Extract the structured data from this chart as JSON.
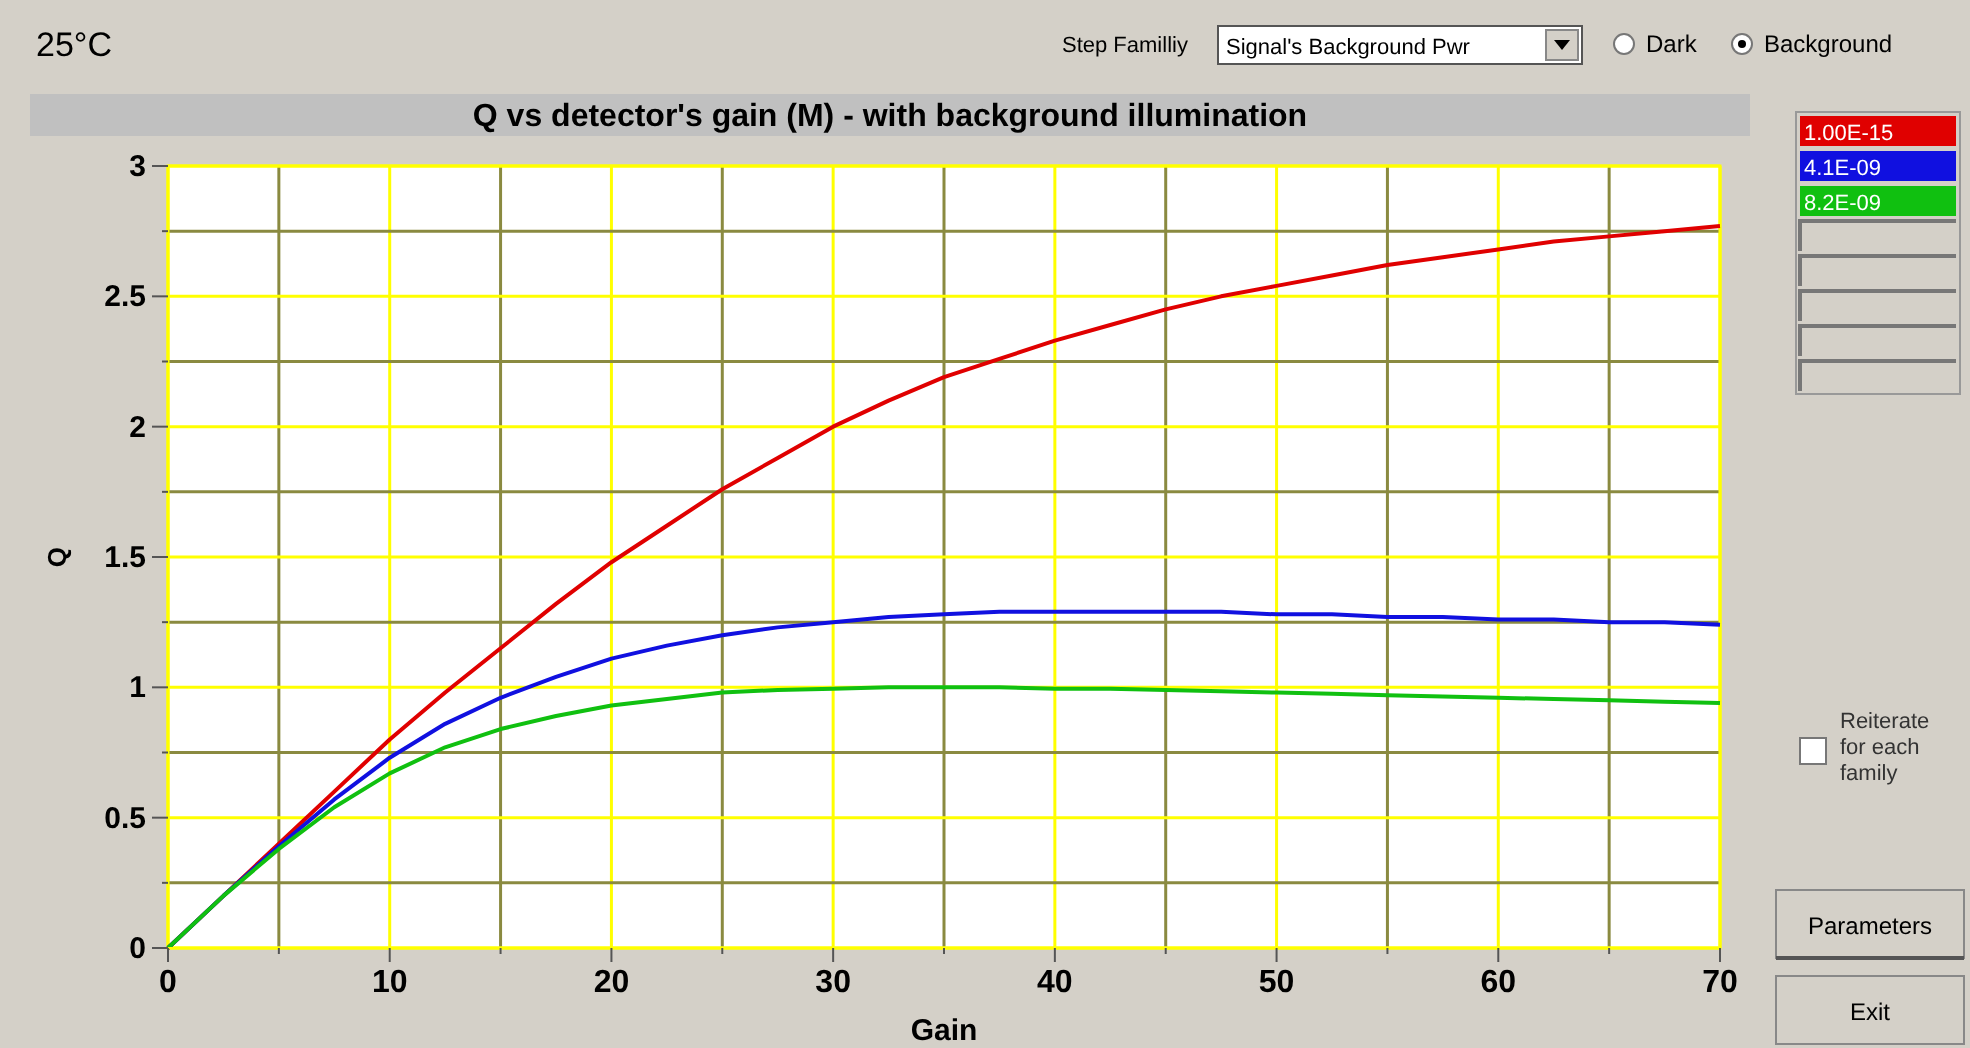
{
  "chart_data": {
    "type": "line",
    "title": "Q vs detector's gain (M) - with background illumination",
    "xlabel": "Gain",
    "ylabel": "Q",
    "annotations": [
      "25°C",
      "Step Familliy",
      "Signal's Background Pwr",
      "Dark",
      "Background",
      "Reiterate for each family",
      "Parameters",
      "Exit"
    ],
    "x": [
      0,
      2.5,
      5,
      7.5,
      10,
      12.5,
      15,
      17.5,
      20,
      22.5,
      25,
      27.5,
      30,
      32.5,
      35,
      37.5,
      40,
      42.5,
      45,
      47.5,
      50,
      52.5,
      55,
      57.5,
      60,
      62.5,
      65,
      67.5,
      70
    ],
    "series": [
      {
        "name": "1.00E-15",
        "color": "#e00000",
        "values": [
          0,
          0.2,
          0.4,
          0.6,
          0.8,
          0.98,
          1.15,
          1.32,
          1.48,
          1.62,
          1.76,
          1.88,
          2.0,
          2.1,
          2.19,
          2.26,
          2.33,
          2.39,
          2.45,
          2.5,
          2.54,
          2.58,
          2.62,
          2.65,
          2.68,
          2.71,
          2.73,
          2.75,
          2.77
        ]
      },
      {
        "name": "4.1E-09",
        "color": "#1010e0",
        "values": [
          0,
          0.2,
          0.39,
          0.57,
          0.73,
          0.86,
          0.96,
          1.04,
          1.11,
          1.16,
          1.2,
          1.23,
          1.25,
          1.27,
          1.28,
          1.29,
          1.29,
          1.29,
          1.29,
          1.29,
          1.28,
          1.28,
          1.27,
          1.27,
          1.26,
          1.26,
          1.25,
          1.25,
          1.24
        ]
      },
      {
        "name": "8.2E-09",
        "color": "#10c010",
        "values": [
          0,
          0.2,
          0.38,
          0.54,
          0.67,
          0.77,
          0.84,
          0.89,
          0.93,
          0.955,
          0.98,
          0.99,
          0.995,
          1.0,
          1.0,
          1.0,
          0.995,
          0.995,
          0.99,
          0.985,
          0.98,
          0.975,
          0.97,
          0.965,
          0.96,
          0.955,
          0.95,
          0.945,
          0.94
        ]
      }
    ],
    "xlim": [
      0,
      70
    ],
    "ylim": [
      0,
      3
    ],
    "xticks": [
      0,
      {
        "value": 5,
        "label": null
      },
      10,
      {
        "value": 15,
        "label": null
      },
      20,
      {
        "value": 25,
        "label": null
      },
      30,
      {
        "value": 35,
        "label": null
      },
      40,
      {
        "value": 45,
        "label": null
      },
      50,
      {
        "value": 55,
        "label": null
      },
      60,
      {
        "value": 65,
        "label": null
      },
      70
    ],
    "yticks": [
      0,
      {
        "value": 0.25,
        "label": null
      },
      0.5,
      {
        "value": 0.75,
        "label": null
      },
      1,
      {
        "value": 1.25,
        "label": null
      },
      1.5,
      {
        "value": 1.75,
        "label": null
      },
      2,
      {
        "value": 2.25,
        "label": null
      },
      2.5,
      {
        "value": 2.75,
        "label": null
      },
      3
    ],
    "grid": true,
    "legend": "right",
    "marker": "none",
    "line_style": "solid"
  }
}
